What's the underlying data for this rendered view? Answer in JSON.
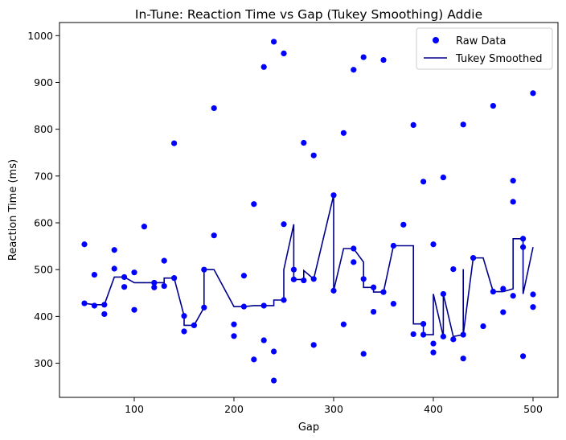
{
  "chart_data": {
    "type": "scatter",
    "title": "In-Tune: Reaction Time vs Gap (Tukey Smoothing) Addie",
    "xlabel": "Gap",
    "ylabel": "Reaction Time (ms)",
    "xlim": [
      25,
      525
    ],
    "ylim": [
      227,
      1028
    ],
    "xticks": [
      100,
      200,
      300,
      400,
      500
    ],
    "yticks": [
      300,
      400,
      500,
      600,
      700,
      800,
      900,
      1000
    ],
    "grid": false,
    "legend_position": "top-right",
    "colors": {
      "raw": "#0000ff",
      "smoothed": "#00008b"
    },
    "series": [
      {
        "name": "Raw Data",
        "kind": "scatter",
        "points": [
          [
            50,
            554
          ],
          [
            50,
            428
          ],
          [
            60,
            423
          ],
          [
            60,
            489
          ],
          [
            70,
            405
          ],
          [
            70,
            425
          ],
          [
            80,
            542
          ],
          [
            80,
            502
          ],
          [
            90,
            484
          ],
          [
            90,
            463
          ],
          [
            100,
            494
          ],
          [
            100,
            414
          ],
          [
            110,
            592
          ],
          [
            120,
            462
          ],
          [
            120,
            472
          ],
          [
            130,
            519
          ],
          [
            130,
            465
          ],
          [
            140,
            770
          ],
          [
            140,
            482
          ],
          [
            150,
            368
          ],
          [
            150,
            401
          ],
          [
            160,
            381
          ],
          [
            170,
            500
          ],
          [
            170,
            419
          ],
          [
            180,
            845
          ],
          [
            180,
            573
          ],
          [
            200,
            358
          ],
          [
            200,
            383
          ],
          [
            210,
            487
          ],
          [
            210,
            421
          ],
          [
            220,
            640
          ],
          [
            220,
            308
          ],
          [
            230,
            933
          ],
          [
            230,
            423
          ],
          [
            230,
            349
          ],
          [
            240,
            987
          ],
          [
            240,
            325
          ],
          [
            240,
            263
          ],
          [
            250,
            962
          ],
          [
            250,
            597
          ],
          [
            250,
            435
          ],
          [
            260,
            500
          ],
          [
            260,
            479
          ],
          [
            270,
            771
          ],
          [
            270,
            477
          ],
          [
            280,
            744
          ],
          [
            280,
            480
          ],
          [
            280,
            339
          ],
          [
            300,
            659
          ],
          [
            300,
            455
          ],
          [
            310,
            792
          ],
          [
            310,
            383
          ],
          [
            320,
            927
          ],
          [
            320,
            545
          ],
          [
            320,
            516
          ],
          [
            330,
            954
          ],
          [
            330,
            480
          ],
          [
            330,
            320
          ],
          [
            340,
            462
          ],
          [
            340,
            410
          ],
          [
            350,
            948
          ],
          [
            350,
            452
          ],
          [
            360,
            551
          ],
          [
            360,
            427
          ],
          [
            370,
            596
          ],
          [
            380,
            809
          ],
          [
            380,
            362
          ],
          [
            390,
            688
          ],
          [
            390,
            384
          ],
          [
            390,
            361
          ],
          [
            400,
            554
          ],
          [
            400,
            342
          ],
          [
            400,
            323
          ],
          [
            410,
            697
          ],
          [
            410,
            448
          ],
          [
            410,
            357
          ],
          [
            420,
            501
          ],
          [
            420,
            351
          ],
          [
            430,
            810
          ],
          [
            430,
            361
          ],
          [
            430,
            310
          ],
          [
            440,
            525
          ],
          [
            450,
            379
          ],
          [
            460,
            850
          ],
          [
            460,
            453
          ],
          [
            470,
            409
          ],
          [
            470,
            459
          ],
          [
            480,
            690
          ],
          [
            480,
            645
          ],
          [
            480,
            444
          ],
          [
            490,
            566
          ],
          [
            490,
            548
          ],
          [
            490,
            315
          ],
          [
            500,
            877
          ],
          [
            500,
            447
          ],
          [
            500,
            420
          ]
        ]
      },
      {
        "name": "Tukey Smoothed",
        "kind": "line",
        "points": [
          [
            50,
            428
          ],
          [
            60,
            425
          ],
          [
            70,
            425
          ],
          [
            80,
            484
          ],
          [
            90,
            484
          ],
          [
            100,
            472
          ],
          [
            110,
            472
          ],
          [
            120,
            472
          ],
          [
            130,
            472
          ],
          [
            130,
            482
          ],
          [
            140,
            482
          ],
          [
            150,
            401
          ],
          [
            150,
            381
          ],
          [
            160,
            381
          ],
          [
            170,
            419
          ],
          [
            170,
            500
          ],
          [
            180,
            500
          ],
          [
            200,
            421
          ],
          [
            210,
            421
          ],
          [
            220,
            423
          ],
          [
            230,
            423
          ],
          [
            240,
            423
          ],
          [
            240,
            435
          ],
          [
            250,
            435
          ],
          [
            250,
            500
          ],
          [
            260,
            597
          ],
          [
            260,
            479
          ],
          [
            270,
            479
          ],
          [
            270,
            498
          ],
          [
            280,
            480
          ],
          [
            300,
            659
          ],
          [
            300,
            455
          ],
          [
            310,
            545
          ],
          [
            320,
            545
          ],
          [
            330,
            516
          ],
          [
            330,
            462
          ],
          [
            340,
            462
          ],
          [
            340,
            452
          ],
          [
            350,
            452
          ],
          [
            360,
            551
          ],
          [
            370,
            551
          ],
          [
            380,
            551
          ],
          [
            380,
            384
          ],
          [
            390,
            384
          ],
          [
            390,
            361
          ],
          [
            400,
            361
          ],
          [
            400,
            448
          ],
          [
            410,
            357
          ],
          [
            410,
            448
          ],
          [
            420,
            357
          ],
          [
            430,
            361
          ],
          [
            430,
            501
          ],
          [
            430,
            361
          ],
          [
            440,
            525
          ],
          [
            450,
            525
          ],
          [
            460,
            453
          ],
          [
            470,
            453
          ],
          [
            480,
            459
          ],
          [
            480,
            566
          ],
          [
            490,
            566
          ],
          [
            490,
            448
          ],
          [
            500,
            548
          ]
        ]
      }
    ]
  }
}
